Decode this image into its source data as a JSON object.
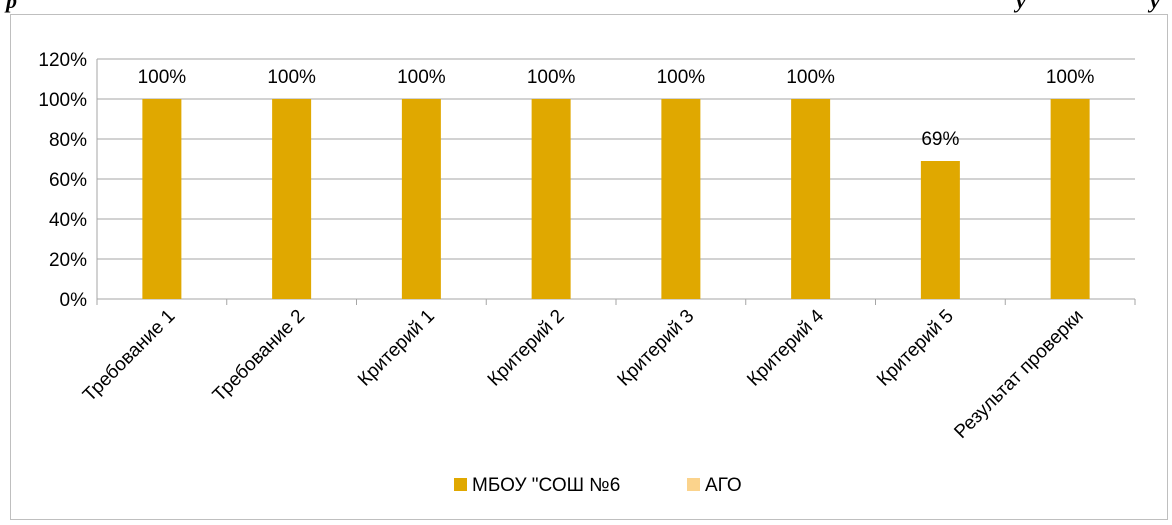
{
  "header": {
    "fragment_left": "р",
    "fragment_right_1": "у",
    "fragment_right_2": "у"
  },
  "chart_data": {
    "type": "bar",
    "categories": [
      "Требование 1",
      "Требование 2",
      "Критерий 1",
      "Критерий 2",
      "Критерий 3",
      "Критерий 4",
      "Критерий 5",
      "Результат проверки"
    ],
    "series": [
      {
        "name": "МБОУ \"СОШ №6",
        "values": [
          1.0,
          1.0,
          1.0,
          1.0,
          1.0,
          1.0,
          0.69,
          1.0
        ],
        "labels": [
          "100%",
          "100%",
          "100%",
          "100%",
          "100%",
          "100%",
          "69%",
          "100%"
        ],
        "color": "#e0a800"
      },
      {
        "name": "АГО",
        "values": [
          null,
          null,
          null,
          null,
          null,
          null,
          null,
          null
        ],
        "color": "#fbd38c"
      }
    ],
    "ylim": [
      0,
      1.2
    ],
    "yticks": [
      "0%",
      "20%",
      "40%",
      "60%",
      "80%",
      "100%",
      "120%"
    ],
    "grid": true,
    "legend_position": "bottom",
    "gridline_color": "#a6a6a6"
  }
}
